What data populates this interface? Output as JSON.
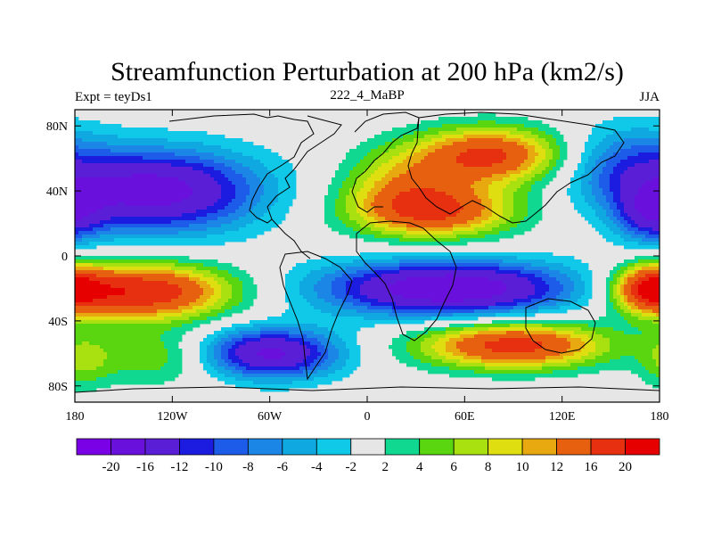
{
  "chart_data": {
    "type": "heatmap",
    "title": "Streamfunction Perturbation at 200 hPa (km2/s)",
    "left_string": "Expt = teyDs1",
    "center_string": "222_4_MaBP",
    "right_string": "JJA",
    "x_range": [
      -180,
      180
    ],
    "y_range": [
      -90,
      90
    ],
    "x_ticks": [
      {
        "value": -180,
        "label": "180"
      },
      {
        "value": -120,
        "label": "120W"
      },
      {
        "value": -60,
        "label": "60W"
      },
      {
        "value": 0,
        "label": "0"
      },
      {
        "value": 60,
        "label": "60E"
      },
      {
        "value": 120,
        "label": "120E"
      },
      {
        "value": 180,
        "label": "180"
      }
    ],
    "y_ticks": [
      {
        "value": 80,
        "label": "80N"
      },
      {
        "value": 40,
        "label": "40N"
      },
      {
        "value": 0,
        "label": "0"
      },
      {
        "value": -40,
        "label": "40S"
      },
      {
        "value": -80,
        "label": "80S"
      }
    ],
    "levels": [
      -20,
      -16,
      -12,
      -10,
      -8,
      -6,
      -4,
      -2,
      2,
      4,
      6,
      8,
      10,
      12,
      16,
      20
    ],
    "level_labels": [
      "-20",
      "-16",
      "-12",
      "-10",
      "-8",
      "-6",
      "-4",
      "-2",
      "2",
      "4",
      "6",
      "8",
      "10",
      "12",
      "16",
      "20"
    ],
    "colors": [
      "#7a00e6",
      "#6a10dc",
      "#5a1ed6",
      "#1c1ce0",
      "#1c5ce8",
      "#1c86e6",
      "#10a8e0",
      "#10c8e8",
      "#e6e6e6",
      "#10d890",
      "#5ad610",
      "#a8e010",
      "#dede10",
      "#e8a810",
      "#e66010",
      "#e63010",
      "#e60000"
    ],
    "field_centers": [
      {
        "lon": -130,
        "lat": 40,
        "amp": -18,
        "slon": 45,
        "slat": 18
      },
      {
        "lon": 40,
        "lat": 28,
        "amp": 17,
        "slon": 35,
        "slat": 12
      },
      {
        "lon": 75,
        "lat": 62,
        "amp": 17,
        "slon": 32,
        "slat": 12
      },
      {
        "lon": 20,
        "lat": 48,
        "amp": 7,
        "slon": 25,
        "slat": 14
      },
      {
        "lon": 160,
        "lat": 55,
        "amp": -8,
        "slon": 28,
        "slat": 18
      },
      {
        "lon": 175,
        "lat": 25,
        "amp": -10,
        "slon": 15,
        "slat": 12
      },
      {
        "lon": -140,
        "lat": -22,
        "amp": 20,
        "slon": 40,
        "slat": 12
      },
      {
        "lon": 50,
        "lat": -20,
        "amp": -20,
        "slon": 55,
        "slat": 12
      },
      {
        "lon": -130,
        "lat": -62,
        "amp": 6,
        "slon": 28,
        "slat": 12
      },
      {
        "lon": -60,
        "lat": -60,
        "amp": -17,
        "slon": 30,
        "slat": 11
      },
      {
        "lon": 90,
        "lat": -55,
        "amp": 18,
        "slon": 40,
        "slat": 10
      },
      {
        "lon": 175,
        "lat": -20,
        "amp": 16,
        "slon": 15,
        "slat": 10
      },
      {
        "lon": -175,
        "lat": -65,
        "amp": 5,
        "slon": 12,
        "slat": 12
      }
    ]
  }
}
